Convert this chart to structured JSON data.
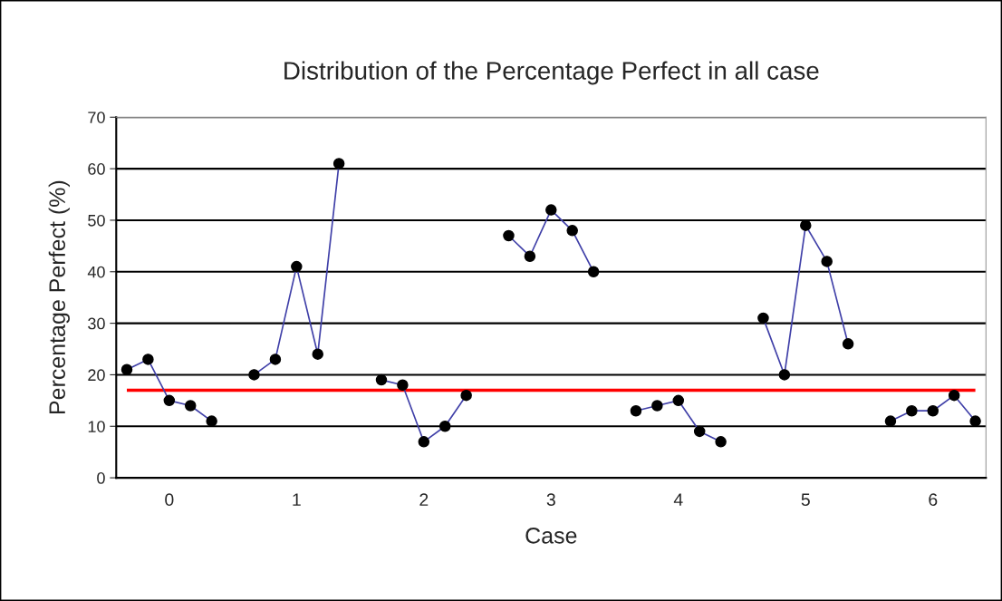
{
  "chart_data": {
    "type": "line",
    "title": "Distribution of the Percentage Perfect in all case",
    "xlabel": "Case",
    "ylabel": "Percentage Perfect (%)",
    "categories": [
      null,
      null,
      "0",
      null,
      null,
      null,
      null,
      null,
      "1",
      null,
      null,
      null,
      null,
      null,
      "2",
      null,
      null,
      null,
      null,
      null,
      "3",
      null,
      null,
      null,
      null,
      null,
      "4",
      null,
      null,
      null,
      null,
      null,
      "5",
      null,
      null,
      null,
      null,
      null,
      "6",
      null,
      null
    ],
    "series": [
      {
        "color": "#4040a8",
        "values": [
          21,
          23,
          15,
          14,
          11,
          null,
          20,
          23,
          41,
          24,
          61,
          null,
          19,
          18,
          7,
          10,
          16,
          null,
          47,
          43,
          52,
          48,
          40,
          null,
          13,
          14,
          15,
          9,
          7,
          null,
          31,
          20,
          49,
          42,
          26,
          null,
          11,
          13,
          13,
          16,
          11
        ]
      }
    ],
    "ylim": [
      0,
      70
    ],
    "yticks": [
      0,
      10,
      20,
      30,
      40,
      50,
      60,
      70
    ],
    "grid": "y",
    "marker": "circle",
    "line_style": "solid",
    "ref_lines": [
      {
        "axis": "y",
        "value": 17,
        "color": "#ff0000"
      }
    ]
  }
}
